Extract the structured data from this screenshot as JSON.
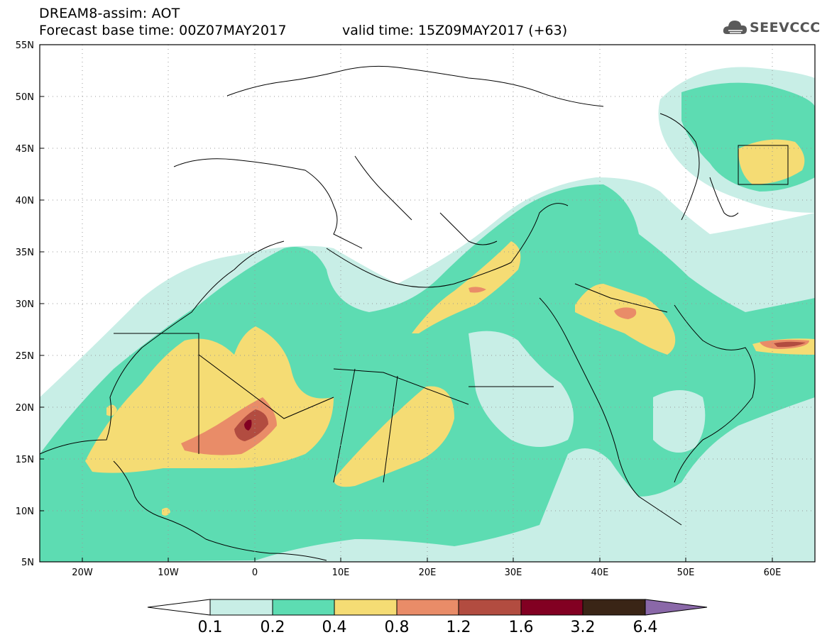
{
  "header": {
    "model_title": "DREAM8-assim: AOT",
    "base_time": "Forecast base time: 00Z07MAY2017",
    "valid_time": "valid time: 15Z09MAY2017 (+63)",
    "logo_text": "SEEVCCC"
  },
  "map": {
    "variable": "AOT",
    "lat_labels": [
      "55N",
      "50N",
      "45N",
      "40N",
      "35N",
      "30N",
      "25N",
      "20N",
      "15N",
      "10N",
      "5N"
    ],
    "lon_labels": [
      "20W",
      "10W",
      "0",
      "10E",
      "20E",
      "30E",
      "40E",
      "50E",
      "60E"
    ]
  },
  "legend": {
    "levels": [
      "0.1",
      "0.2",
      "0.4",
      "0.8",
      "1.2",
      "1.6",
      "3.2",
      "6.4"
    ],
    "colors": [
      "#ffffff",
      "#c8eee6",
      "#5ddcb2",
      "#f5dc74",
      "#e98c68",
      "#b24c40",
      "#820022",
      "#3a2516",
      "#8a68a8"
    ]
  }
}
